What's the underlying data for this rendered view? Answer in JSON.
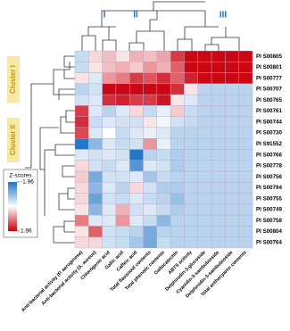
{
  "chart_data": {
    "type": "heatmap",
    "rows": [
      "PI S00805",
      "PI S00801",
      "PI S00777",
      "PI S00707",
      "PI S00765",
      "PI S00761",
      "PI S00744",
      "PI S00730",
      "PI S91552",
      "PI S00766",
      "PI S00778",
      "PI S00756",
      "PI S00794",
      "PI S00755",
      "PI S00749",
      "PI S00758",
      "PI S00804",
      "PI S00764"
    ],
    "columns": [
      "Anti-bacterial activity (P. aeruginosa)",
      "Anti-bacterial activity (S. aureus)",
      "Chlorogenic acid",
      "Gallic acid",
      "Caffeic acid",
      "Total flavonoid contents",
      "Total phenolic contents",
      "Gallocatechin",
      "ABTS activity",
      "Delphinidin-3-glucoside",
      "Cyanidin-3-sambubioside",
      "Delphinidin-3-sambubioside",
      "Total anthocyanin contents"
    ],
    "z": [
      [
        -0.5,
        0.3,
        0.5,
        0.2,
        0.6,
        0.5,
        0.7,
        1.5,
        1.9,
        1.9,
        1.9,
        1.9,
        1.9
      ],
      [
        -0.5,
        0.2,
        0.5,
        0.6,
        0.4,
        0.8,
        0.6,
        1.2,
        1.9,
        1.9,
        1.9,
        1.9,
        1.9
      ],
      [
        0.2,
        -0.3,
        0.8,
        1.0,
        1.5,
        1.3,
        1.6,
        1.2,
        1.7,
        1.9,
        1.9,
        1.9,
        1.9
      ],
      [
        -0.6,
        -0.4,
        1.9,
        1.9,
        1.9,
        1.9,
        1.9,
        1.6,
        0.2,
        -0.6,
        -0.6,
        -0.6,
        -0.6
      ],
      [
        -0.4,
        -0.3,
        1.6,
        1.7,
        1.5,
        1.5,
        1.8,
        0.2,
        -0.3,
        -0.6,
        -0.6,
        -0.6,
        -0.6
      ],
      [
        1.5,
        -0.3,
        -0.6,
        -0.3,
        0.3,
        -0.5,
        -0.2,
        0.4,
        -0.5,
        -0.6,
        -0.6,
        -0.6,
        -0.6
      ],
      [
        1.6,
        -0.5,
        -0.3,
        -0.4,
        -0.4,
        0.2,
        -0.1,
        -0.4,
        -0.5,
        -0.6,
        -0.6,
        -0.6,
        -0.6
      ],
      [
        1.4,
        -0.3,
        0.0,
        -0.5,
        -0.3,
        -0.2,
        -0.3,
        -0.6,
        -0.6,
        -0.6,
        -0.6,
        -0.6,
        -0.6
      ],
      [
        -1.9,
        -1.0,
        -0.3,
        -0.5,
        -0.4,
        0.8,
        -0.2,
        -0.6,
        -0.6,
        -0.6,
        -0.6,
        -0.6,
        -0.6
      ],
      [
        -0.3,
        -0.4,
        -0.3,
        -0.4,
        -1.9,
        -0.6,
        -0.5,
        -0.7,
        -0.6,
        -0.6,
        -0.6,
        -0.6,
        -0.6
      ],
      [
        0.3,
        -0.4,
        -0.5,
        -0.3,
        -1.5,
        -0.3,
        -0.4,
        -0.7,
        -0.6,
        -0.6,
        -0.6,
        -0.6,
        -0.6
      ],
      [
        0.4,
        -1.2,
        -0.4,
        -0.4,
        -0.3,
        -0.8,
        -0.5,
        -0.6,
        -0.6,
        -0.6,
        -0.6,
        -0.6,
        -0.6
      ],
      [
        0.3,
        -1.0,
        -0.3,
        -0.6,
        0.3,
        -0.4,
        -0.7,
        -0.7,
        -0.6,
        -0.6,
        -0.6,
        -0.6,
        -0.6
      ],
      [
        0.3,
        -1.3,
        -0.4,
        -0.5,
        -0.3,
        -0.5,
        -0.6,
        -0.9,
        -0.6,
        -0.6,
        -0.6,
        -0.6,
        -0.6
      ],
      [
        0.2,
        -1.0,
        -0.3,
        0.6,
        -0.4,
        -0.3,
        -0.5,
        -0.7,
        -0.6,
        -0.6,
        -0.6,
        -0.6,
        -0.6
      ],
      [
        1.0,
        -0.3,
        -0.3,
        0.8,
        -0.3,
        -0.5,
        -1.0,
        -0.6,
        -0.6,
        -0.6,
        -0.6,
        -0.6,
        -0.6
      ],
      [
        0.2,
        1.2,
        -0.4,
        -0.5,
        -0.6,
        -1.2,
        -0.6,
        -0.6,
        -0.6,
        -0.6,
        -0.6,
        -0.6,
        -0.6
      ],
      [
        0.3,
        0.3,
        -0.4,
        -0.5,
        -0.8,
        -1.2,
        -0.5,
        -0.6,
        -0.6,
        -0.6,
        -0.6,
        -0.6,
        -0.6
      ]
    ],
    "zlim": [
      -1.96,
      1.96
    ],
    "colors": [
      "#1f74c4",
      "#ffffff",
      "#c8000c"
    ],
    "colorbar": {
      "title": "Z-scores",
      "ticks": [
        -1.96,
        1.96
      ]
    },
    "row_clusters": [
      "Cluster I",
      "Cluster II"
    ],
    "column_clusters": [
      "I",
      "II",
      "III"
    ]
  }
}
